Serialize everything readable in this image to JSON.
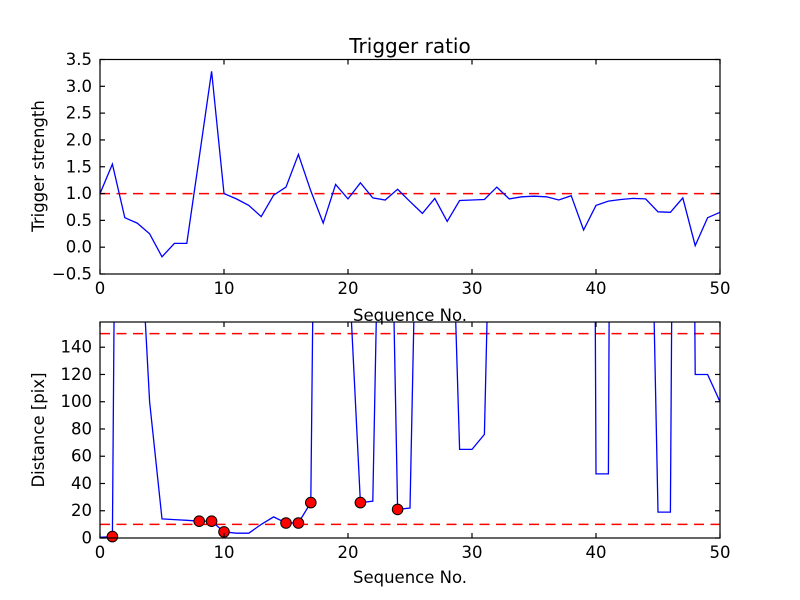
{
  "figure": {
    "background": "#ffffff",
    "text_color": "#000000",
    "spine_color": "#000000"
  },
  "chart_data": [
    {
      "type": "line",
      "title": "Trigger ratio",
      "xlabel": "Sequence No.",
      "ylabel": "Trigger strength",
      "xlim": [
        0,
        50
      ],
      "ylim": [
        -0.5,
        3.5
      ],
      "grid": false,
      "legend": null,
      "xticks": {
        "values": [
          0,
          10,
          20,
          30,
          40,
          50
        ],
        "labels": [
          "0",
          "10",
          "20",
          "30",
          "40",
          "50"
        ]
      },
      "yticks": {
        "values": [
          -0.5,
          0.0,
          0.5,
          1.0,
          1.5,
          2.0,
          2.5,
          3.0,
          3.5
        ],
        "labels": [
          "−0.5",
          "0.0",
          "0.5",
          "1.0",
          "1.5",
          "2.0",
          "2.5",
          "3.0",
          "3.5"
        ]
      },
      "threshold_lines": [
        {
          "y": 1.0,
          "color": "#ff0000",
          "style": "dashed"
        }
      ],
      "series": [
        {
          "name": "trigger-strength",
          "color": "#0000ff",
          "x": [
            0,
            1,
            2,
            3,
            4,
            5,
            6,
            7,
            8,
            9,
            10,
            11,
            12,
            13,
            14,
            15,
            16,
            17,
            18,
            19,
            20,
            21,
            22,
            23,
            24,
            25,
            26,
            27,
            28,
            29,
            30,
            31,
            32,
            33,
            34,
            35,
            36,
            37,
            38,
            39,
            40,
            41,
            42,
            43,
            44,
            45,
            46,
            47,
            48,
            49,
            50
          ],
          "y": [
            1.0,
            1.55,
            0.55,
            0.45,
            0.25,
            -0.18,
            0.07,
            0.07,
            1.67,
            3.28,
            1.0,
            0.9,
            0.78,
            0.57,
            0.97,
            1.12,
            1.73,
            1.05,
            0.45,
            1.17,
            0.9,
            1.2,
            0.92,
            0.88,
            1.08,
            0.85,
            0.63,
            0.91,
            0.48,
            0.87,
            0.88,
            0.89,
            1.12,
            0.9,
            0.94,
            0.95,
            0.94,
            0.88,
            0.96,
            0.32,
            0.78,
            0.86,
            0.89,
            0.91,
            0.9,
            0.66,
            0.65,
            0.92,
            0.03,
            0.55,
            0.65
          ]
        }
      ]
    },
    {
      "type": "line",
      "title": "",
      "xlabel": "Sequence No.",
      "ylabel": "Distance [pix]",
      "xlim": [
        0,
        50
      ],
      "ylim": [
        0,
        158.5
      ],
      "grid": false,
      "legend": null,
      "xticks": {
        "values": [
          0,
          10,
          20,
          30,
          40,
          50
        ],
        "labels": [
          "0",
          "10",
          "20",
          "30",
          "40",
          "50"
        ]
      },
      "yticks": {
        "values": [
          0,
          20,
          40,
          60,
          80,
          100,
          120,
          140
        ],
        "labels": [
          "0",
          "20",
          "40",
          "60",
          "80",
          "100",
          "120",
          "140"
        ]
      },
      "threshold_lines": [
        {
          "y": 150,
          "color": "#ff0000",
          "style": "dashed"
        },
        {
          "y": 10,
          "color": "#ff0000",
          "style": "dashed"
        }
      ],
      "series": [
        {
          "name": "distance",
          "color": "#0000ff",
          "x": [
            0,
            1,
            2,
            3,
            4,
            5,
            6,
            7,
            8,
            9,
            10,
            11,
            12,
            13,
            14,
            15,
            16,
            17,
            18,
            19,
            20,
            21,
            22,
            23,
            24,
            25,
            26,
            27,
            28,
            29,
            30,
            31,
            32,
            33,
            34,
            35,
            36,
            37,
            38,
            39,
            40,
            41,
            42,
            43,
            44,
            45,
            46,
            47,
            48,
            49,
            50
          ],
          "y": [
            0.5,
            1,
            1200,
            270,
            100,
            14,
            13.5,
            13,
            12.3,
            12.3,
            4.5,
            3.5,
            3.5,
            10,
            15.5,
            11,
            11,
            26,
            900,
            700,
            210,
            26,
            27,
            500,
            21,
            22,
            465,
            500,
            365,
            65,
            65,
            76,
            470,
            500,
            500,
            500,
            500,
            500,
            500,
            2000,
            47,
            47,
            2000,
            600,
            470,
            19,
            19,
            1400,
            120,
            120,
            100
          ],
          "note_offscale": "values above 158.5 run off the top of the axes"
        }
      ],
      "markers": {
        "name": "highlight-markers",
        "shape": "circle",
        "fill": "#ff0000",
        "edge": "#000000",
        "x": [
          1,
          8,
          9,
          10,
          15,
          16,
          17,
          21,
          24
        ],
        "y": [
          1,
          12.3,
          12.3,
          4.5,
          11,
          11,
          26,
          26,
          21
        ]
      }
    }
  ]
}
